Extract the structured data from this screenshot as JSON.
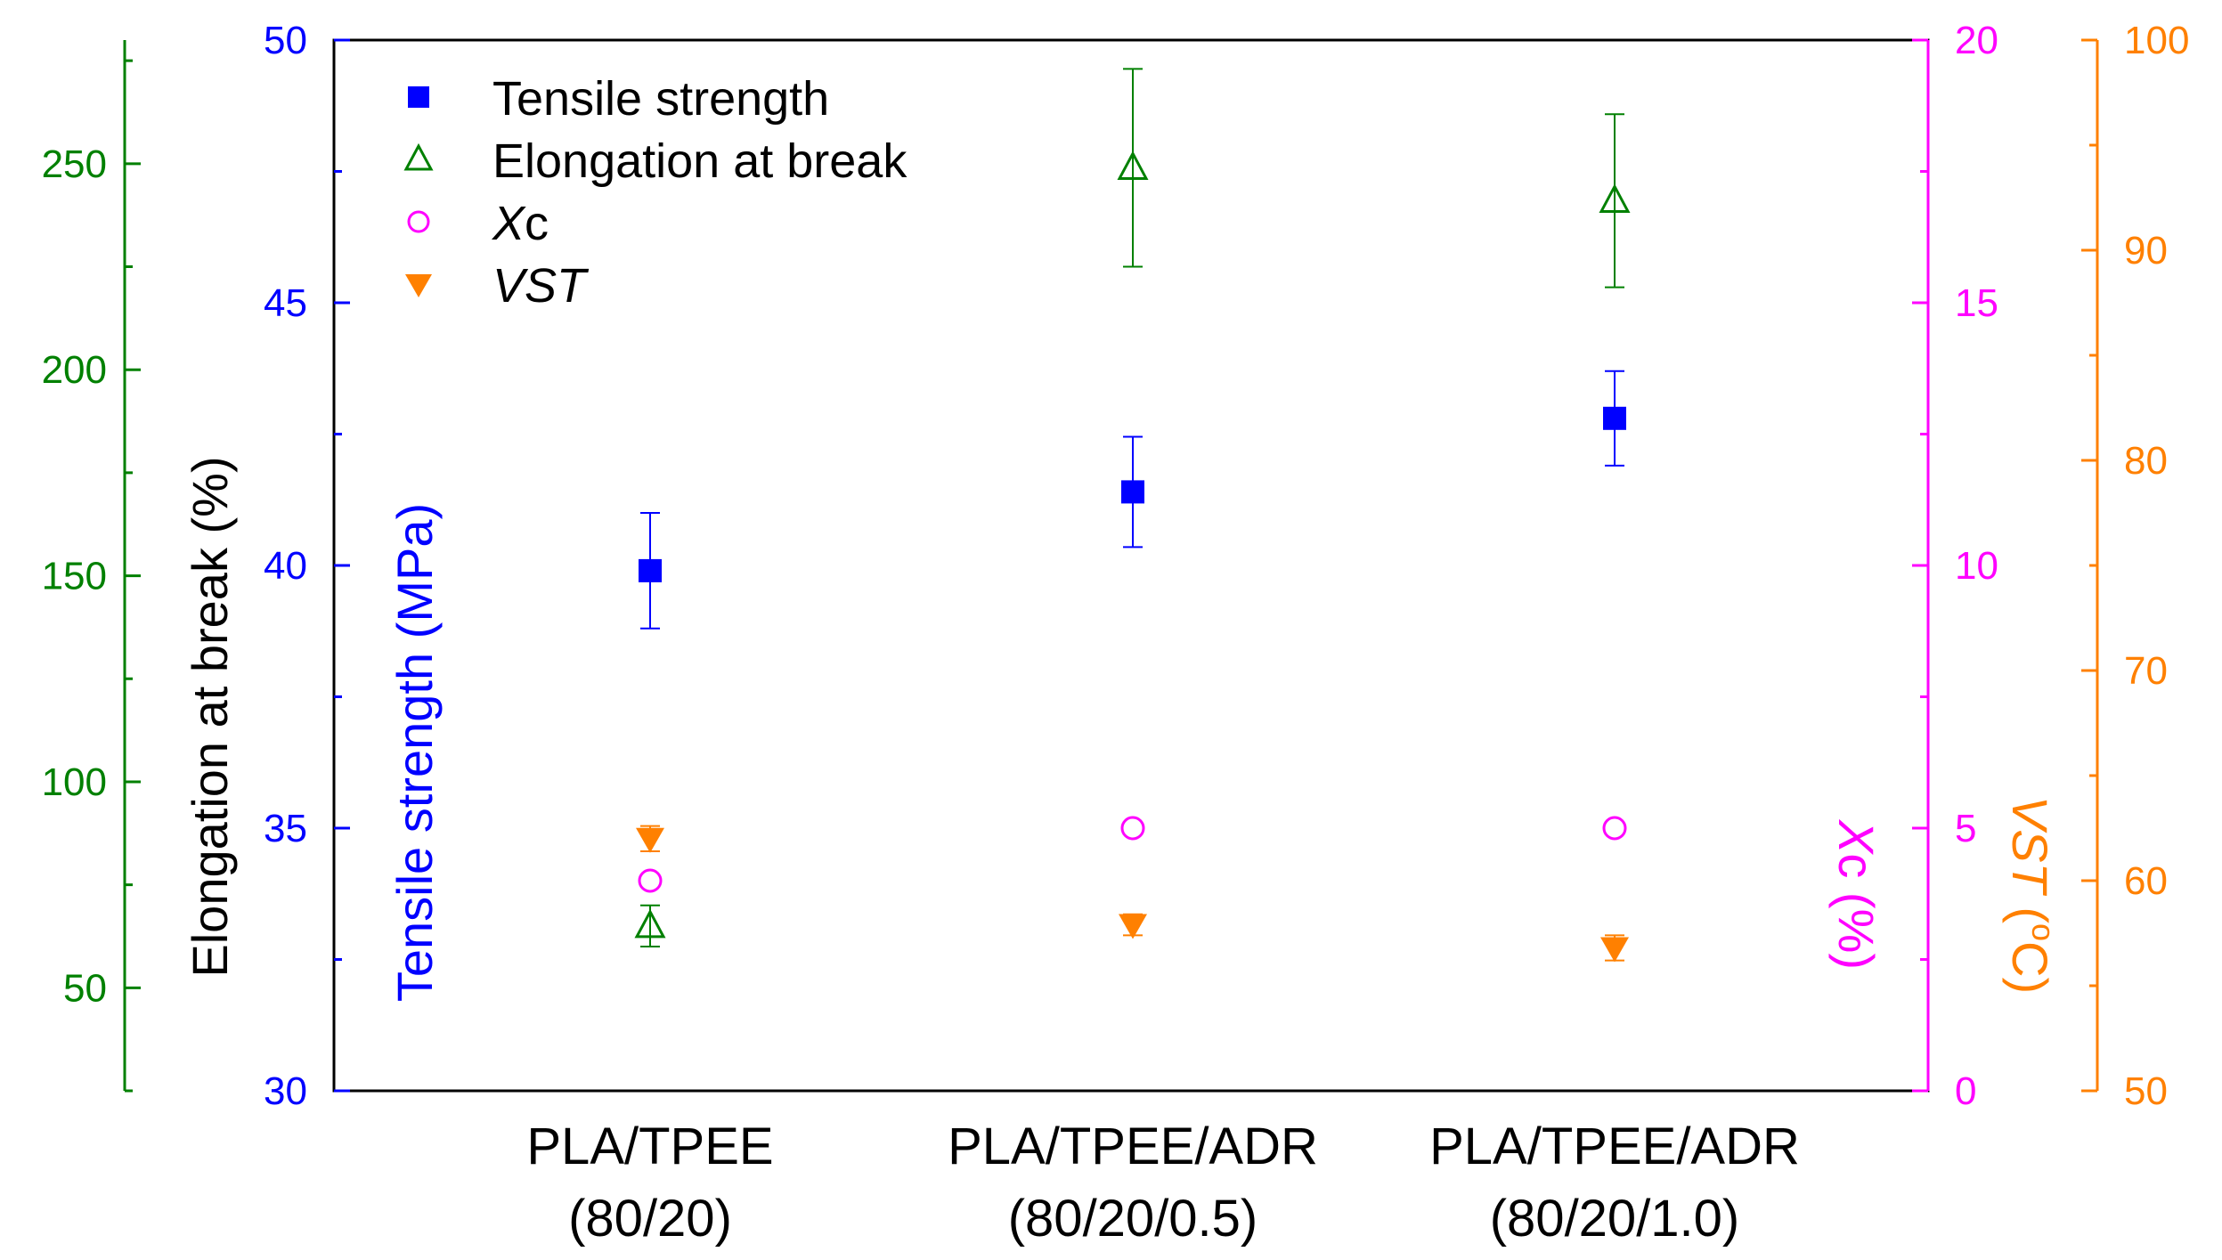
{
  "colors": {
    "tensile": "#0000ff",
    "elongation": "#008000",
    "xc": "#ff00ff",
    "vst": "#ff8000",
    "frame": "#000000",
    "text": "#000000"
  },
  "chart_data": {
    "type": "scatter",
    "categories": [
      {
        "line1": "PLA/TPEE",
        "line2": "(80/20)"
      },
      {
        "line1": "PLA/TPEE/ADR",
        "line2": "(80/20/0.5)"
      },
      {
        "line1": "PLA/TPEE/ADR",
        "line2": "(80/20/1.0)"
      }
    ],
    "axes": {
      "elongation": {
        "label": "Elongation at break (%)",
        "min": 25,
        "max": 280,
        "ticks": [
          50,
          100,
          150,
          200,
          250
        ]
      },
      "tensile": {
        "label": "Tensile strength (MPa)",
        "min": 30,
        "max": 50,
        "ticks": [
          30,
          35,
          40,
          45,
          50
        ]
      },
      "xc": {
        "label": "Xc (%)",
        "min": 0,
        "max": 20,
        "ticks": [
          0,
          5,
          10,
          15,
          20
        ]
      },
      "vst": {
        "label": "VST (°C)",
        "min": 50,
        "max": 100,
        "ticks": [
          50,
          60,
          70,
          80,
          90,
          100
        ]
      }
    },
    "series": [
      {
        "name": "Tensile strength",
        "axis": "tensile",
        "marker": "square-filled",
        "values": [
          39.9,
          41.4,
          42.8
        ],
        "errors": [
          1.1,
          1.05,
          0.9
        ]
      },
      {
        "name": "Elongation at break",
        "axis": "elongation",
        "marker": "triangle-up-open",
        "values": [
          65,
          249,
          241
        ],
        "errors": [
          5,
          24,
          21
        ]
      },
      {
        "name": "Xc",
        "axis": "xc",
        "marker": "circle-open",
        "values": [
          4.0,
          5.0,
          5.0
        ],
        "errors": [
          0,
          0,
          0
        ]
      },
      {
        "name": "VST",
        "axis": "vst",
        "marker": "triangle-down-filled",
        "values": [
          62.0,
          57.9,
          56.8
        ],
        "errors": [
          0.6,
          0.5,
          0.6
        ]
      }
    ],
    "legend": {
      "position": "top-left",
      "entries": [
        {
          "text": "Tensile strength",
          "italic": false
        },
        {
          "text": "Elongation at break",
          "italic": false
        },
        {
          "italic_part": "X",
          "plain_part": "c"
        },
        {
          "text": "VST",
          "italic": true
        }
      ]
    }
  }
}
